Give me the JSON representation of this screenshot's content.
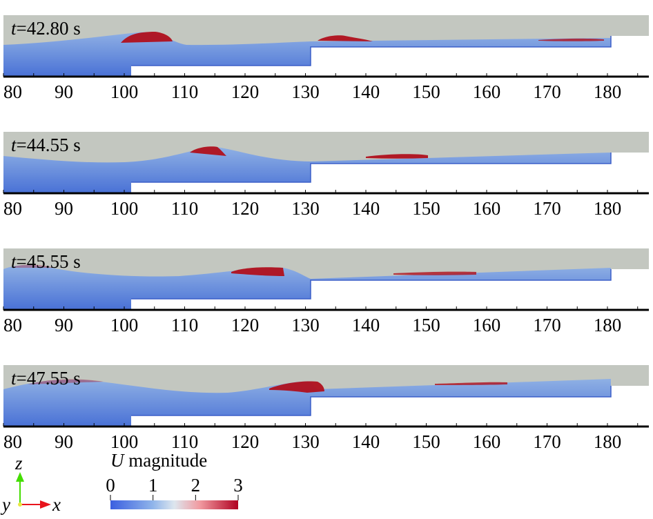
{
  "panels": [
    {
      "time_var": "t",
      "time_value": "=42.80 s"
    },
    {
      "time_var": "t",
      "time_value": "=44.55 s"
    },
    {
      "time_var": "t",
      "time_value": "=45.55 s"
    },
    {
      "time_var": "t",
      "time_value": "=47.55 s"
    }
  ],
  "x_axis": {
    "min": 80,
    "max": 185,
    "major_ticks": [
      80,
      90,
      100,
      110,
      120,
      130,
      140,
      150,
      160,
      170,
      180
    ],
    "minor_step": 5
  },
  "legend": {
    "title_var": "U",
    "title_text": " magnitude",
    "ticks": [
      "0",
      "1",
      "2",
      "3"
    ],
    "range": [
      0,
      3
    ],
    "colors": [
      "#3b4cc0",
      "#b8d4ee",
      "#f2a2a8",
      "#b40426"
    ]
  },
  "axes_triad": {
    "z": "z",
    "y": "y",
    "x": "x",
    "z_color": "#44dd00",
    "x_color": "#e8141c"
  }
}
